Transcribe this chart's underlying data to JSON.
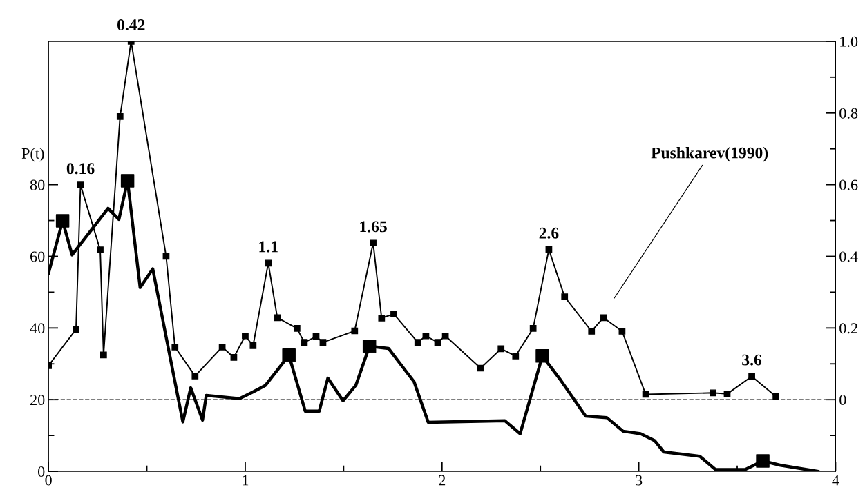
{
  "chart_data": {
    "type": "line",
    "ylabel": "P(t)",
    "xlim": [
      0,
      4
    ],
    "xticks": [
      0,
      {
        "value": 0.5,
        "label": null
      },
      1,
      {
        "value": 1.5,
        "label": null
      },
      2,
      {
        "value": 2.5,
        "label": null
      },
      3,
      {
        "value": 3.5,
        "label": null
      },
      4
    ],
    "ylim": [
      0,
      120
    ],
    "yticks": [
      0,
      {
        "value": 10,
        "label": null
      },
      20,
      {
        "value": 30,
        "label": null
      },
      40,
      {
        "value": 50,
        "label": null
      },
      60,
      {
        "value": 70,
        "label": null
      },
      80
    ],
    "y2lim": [
      -0.2,
      1.0
    ],
    "y2ticks": [
      {
        "value": -0.1,
        "label": null
      },
      0,
      {
        "value": 0.1,
        "label": null
      },
      0.2,
      {
        "value": 0.3,
        "label": null
      },
      0.4,
      {
        "value": 0.5,
        "label": null
      },
      0.6,
      {
        "value": 0.7,
        "label": null
      },
      0.8,
      {
        "value": 0.9,
        "label": null
      },
      {
        "value": 1.0,
        "label": "1.0"
      }
    ],
    "grid": false,
    "legend": false,
    "ref_lines": [
      {
        "axis": "y2",
        "value": 0,
        "color": "#555555",
        "line_style": "dashed"
      }
    ],
    "series": [
      {
        "name": "Pushkarev(1990)",
        "axis": "y2",
        "color": "#000000",
        "marker": "square",
        "line_style": "solid",
        "x": [
          0.0,
          0.14,
          0.163,
          0.263,
          0.28,
          0.364,
          0.42,
          0.598,
          0.643,
          0.745,
          0.883,
          0.942,
          1.0,
          1.04,
          1.117,
          1.163,
          1.263,
          1.3,
          1.36,
          1.395,
          1.556,
          1.65,
          1.693,
          1.755,
          1.877,
          1.918,
          1.978,
          2.017,
          2.196,
          2.3,
          2.374,
          2.463,
          2.543,
          2.623,
          2.76,
          2.82,
          2.915,
          3.035,
          3.377,
          3.449,
          3.574,
          3.697
        ],
        "values": [
          0.095,
          0.196,
          0.599,
          0.418,
          0.125,
          0.79,
          1.0,
          0.4,
          0.147,
          0.066,
          0.147,
          0.118,
          0.178,
          0.151,
          0.381,
          0.229,
          0.199,
          0.16,
          0.176,
          0.16,
          0.192,
          0.437,
          0.228,
          0.239,
          0.16,
          0.178,
          0.16,
          0.178,
          0.088,
          0.142,
          0.122,
          0.199,
          0.419,
          0.287,
          0.191,
          0.229,
          0.191,
          0.015,
          0.019,
          0.016,
          0.065,
          0.009
        ]
      },
      {
        "axis": "y",
        "color": "#000000",
        "marker": "none",
        "line_style": "solid",
        "x": [
          0.0,
          0.072,
          0.12,
          0.303,
          0.358,
          0.402,
          0.466,
          0.53,
          0.683,
          0.723,
          0.783,
          0.802,
          0.97,
          1.038,
          1.103,
          1.222,
          1.305,
          1.376,
          1.42,
          1.497,
          1.562,
          1.631,
          1.728,
          1.858,
          1.93,
          2.32,
          2.397,
          2.51,
          2.605,
          2.73,
          2.837,
          2.92,
          3.009,
          3.08,
          3.127,
          3.31,
          3.39,
          3.54,
          3.63,
          3.72,
          3.91
        ],
        "values": [
          55.2,
          69.9,
          60.4,
          73.4,
          70.3,
          81.1,
          51.3,
          56.5,
          13.8,
          23.3,
          14.3,
          21.2,
          20.3,
          22.1,
          24.0,
          32.4,
          16.8,
          16.8,
          26.0,
          19.7,
          24.0,
          34.9,
          34.3,
          25.0,
          13.7,
          14.1,
          10.5,
          32.2,
          25.3,
          15.4,
          15.0,
          11.2,
          10.5,
          8.6,
          5.4,
          4.2,
          0.5,
          0.5,
          2.9,
          1.7,
          0
        ]
      },
      {
        "type": "scatter",
        "axis": "y",
        "color": "#000000",
        "marker": "square",
        "x": [
          0.072,
          0.402,
          1.222,
          1.631,
          2.51,
          3.63
        ],
        "values": [
          69.9,
          81.1,
          32.4,
          34.9,
          32.2,
          2.9
        ]
      }
    ],
    "annotations": [
      {
        "text": "0.16",
        "x": 0.163,
        "y": 79.9
      },
      {
        "text": "0.42",
        "x": 0.42,
        "y": 120
      },
      {
        "text": "1.1",
        "x": 1.117,
        "y": 58.1
      },
      {
        "text": "1.65",
        "x": 1.65,
        "y": 63.7
      },
      {
        "text": "2.6",
        "x": 2.543,
        "y": 61.9
      },
      {
        "text": "3.6",
        "x": 3.574,
        "y": 26.5
      }
    ]
  }
}
